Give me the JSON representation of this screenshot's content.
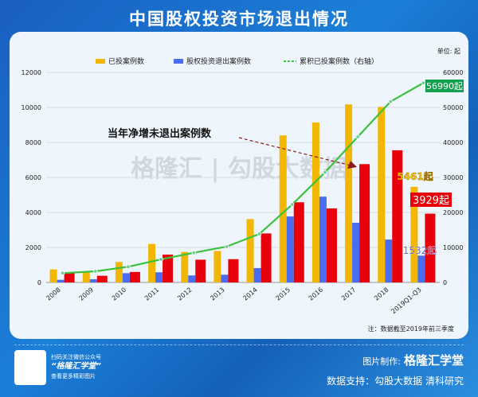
{
  "title": "中国股权投资市场退出情况",
  "unit": "单位: 起",
  "note": "注：数据截至2019年前三季度",
  "watermark": "格隆汇 | 勾股大数据",
  "footer": {
    "qr_line1": "扫码关注微信公众号",
    "qr_line2": "“格隆汇学堂”",
    "qr_line3": "查看更多精彩图片",
    "maker_label": "图片制作:",
    "maker": "格隆汇学堂",
    "source": "数据支持：勾股大数据  清科研究"
  },
  "chart_data": {
    "type": "bar",
    "categories": [
      "2008",
      "2009",
      "2010",
      "2011",
      "2012",
      "2013",
      "2014",
      "2015",
      "2016",
      "2017",
      "2018",
      "2019Q1-Q3"
    ],
    "series": [
      {
        "name": "已投案例数",
        "type": "bar",
        "axis": "left",
        "color": "#f2b705",
        "values": [
          745,
          636,
          1170,
          2200,
          1740,
          1800,
          3620,
          8400,
          9140,
          10170,
          10030,
          5461
        ]
      },
      {
        "name": "股权投资退出案例数",
        "type": "bar",
        "axis": "left",
        "color": "#4a6cf0",
        "values": [
          150,
          180,
          530,
          580,
          400,
          440,
          820,
          3770,
          4900,
          3410,
          2450,
          1532
        ]
      },
      {
        "type": "bar",
        "axis": "left",
        "color": "#e8000b",
        "values": [
          560,
          380,
          600,
          1590,
          1300,
          1330,
          2800,
          4580,
          4230,
          6760,
          7550,
          3929
        ]
      },
      {
        "name": "累积已投案例数（右轴）",
        "type": "line",
        "axis": "right",
        "color": "#3cc23c",
        "values": [
          2660,
          3180,
          4470,
          6590,
          8480,
          10230,
          13860,
          22270,
          31440,
          41590,
          51670,
          56990
        ]
      }
    ],
    "annotation": "当年净增未退出案例数",
    "data_labels": [
      "56990起",
      "5461起",
      "3929起",
      "1532起"
    ],
    "ylim_left": [
      0,
      12000
    ],
    "ylim_right": [
      0,
      60000
    ],
    "yticks_left": [
      "0",
      "2000",
      "4000",
      "6000",
      "8000",
      "10000",
      "12000"
    ],
    "yticks_right": [
      "0",
      "10000",
      "20000",
      "30000",
      "40000",
      "50000",
      "60000"
    ],
    "grid": true,
    "legend": "top"
  }
}
